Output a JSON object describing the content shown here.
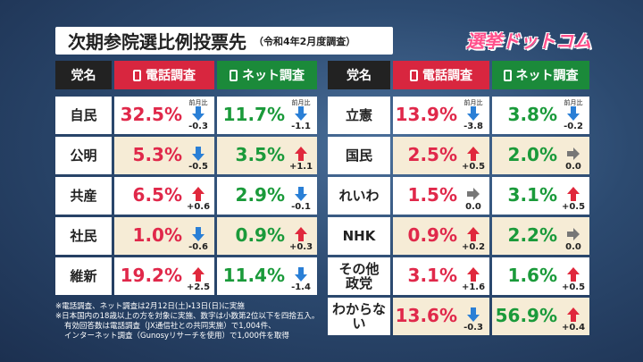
{
  "header": {
    "title": "次期参院選比例投票先",
    "subtitle": "（令和4年2月度調査）",
    "logo": "選挙ドットコム"
  },
  "tables": [
    {
      "columns": [
        "党名",
        "電話調査",
        "ネット調査"
      ],
      "change_label": "前月比",
      "rows": [
        [
          "自民",
          "32.5%",
          "-0.3",
          "11.7%",
          "-1.1"
        ],
        [
          "公明",
          "5.3%",
          "-0.5",
          "3.5%",
          "+1.1"
        ],
        [
          "共産",
          "6.5%",
          "+0.6",
          "2.9%",
          "-0.1"
        ],
        [
          "社民",
          "1.0%",
          "-0.6",
          "0.9%",
          "+0.3"
        ],
        [
          "維新",
          "19.2%",
          "+2.5",
          "11.4%",
          "-1.4"
        ]
      ]
    },
    {
      "columns": [
        "党名",
        "電話調査",
        "ネット調査"
      ],
      "change_label": "前月比",
      "rows": [
        [
          "立憲",
          "13.9%",
          "-3.8",
          "3.8%",
          "-0.2"
        ],
        [
          "国民",
          "2.5%",
          "+0.5",
          "2.0%",
          "0.0"
        ],
        [
          "れいわ",
          "1.5%",
          "0.0",
          "3.1%",
          "+0.5"
        ],
        [
          "NHK",
          "0.9%",
          "+0.2",
          "2.2%",
          "0.0"
        ],
        [
          "その他\n政党",
          "3.1%",
          "+1.6",
          "1.6%",
          "+0.5"
        ],
        [
          "わからない",
          "13.6%",
          "-0.3",
          "56.9%",
          "+0.4"
        ]
      ]
    }
  ],
  "footnotes": [
    "※電話調査、ネット調査は2月12日(土)・13日(日)に実施",
    "※日本国内の18歳以上の方を対象に実施、数字は小数第2位以下を四捨五入。",
    "有効回答数は電話調査（JX通信社との共同実施）で1,004件、",
    "インターネット調査（Gunosyリサーチを使用）で1,000件を取得"
  ]
}
